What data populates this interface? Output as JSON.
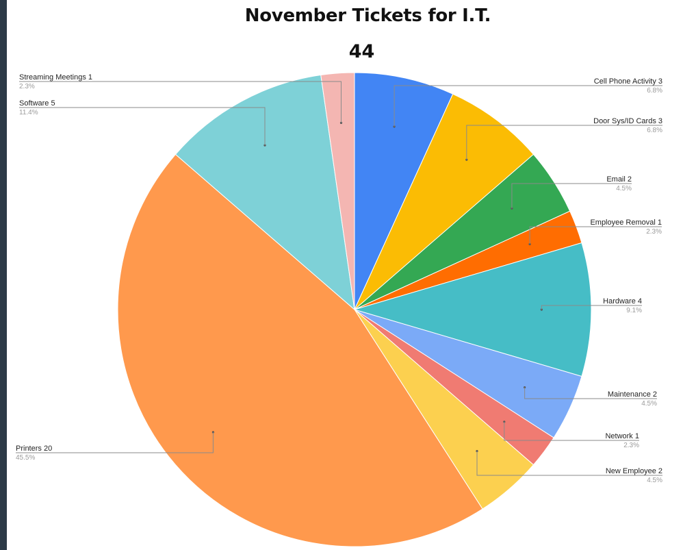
{
  "chart_data": {
    "type": "pie",
    "title": "November Tickets for I.T.",
    "total": "44",
    "slices": [
      {
        "label": "Cell Phone Activity",
        "value": 3,
        "percent": "6.8%",
        "color": "#4285f4",
        "side": "right"
      },
      {
        "label": "Door Sys/ID Cards",
        "value": 3,
        "percent": "6.8%",
        "color": "#fbbc04",
        "side": "right"
      },
      {
        "label": "Email",
        "value": 2,
        "percent": "4.5%",
        "color": "#34a853",
        "side": "right"
      },
      {
        "label": "Employee Removal",
        "value": 1,
        "percent": "2.3%",
        "color": "#ff6d01",
        "side": "right"
      },
      {
        "label": "Hardware",
        "value": 4,
        "percent": "9.1%",
        "color": "#46bdc6",
        "side": "right"
      },
      {
        "label": "Maintenance",
        "value": 2,
        "percent": "4.5%",
        "color": "#7baaf7",
        "side": "right"
      },
      {
        "label": "Network",
        "value": 1,
        "percent": "2.3%",
        "color": "#f07b72",
        "side": "right"
      },
      {
        "label": "New Employee",
        "value": 2,
        "percent": "4.5%",
        "color": "#fcd04f",
        "side": "right"
      },
      {
        "label": "Printers",
        "value": 20,
        "percent": "45.5%",
        "color": "#ff994d",
        "side": "left"
      },
      {
        "label": "Software",
        "value": 5,
        "percent": "11.4%",
        "color": "#7ed1d7",
        "side": "left"
      },
      {
        "label": "Streaming Meetings",
        "value": 1,
        "percent": "2.3%",
        "color": "#f4b6b2",
        "side": "left"
      }
    ]
  }
}
